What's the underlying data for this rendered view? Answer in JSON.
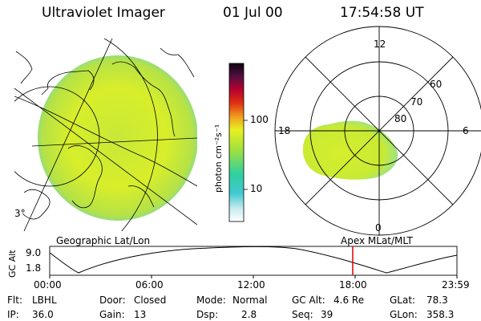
{
  "header": {
    "instrument": "Ultraviolet Imager",
    "date": "01 Jul 00",
    "time": "17:54:58 UT"
  },
  "colorbar": {
    "unit_label": "photon cm⁻²s⁻¹",
    "ticks": [
      "100",
      "10"
    ]
  },
  "geo_panel": {
    "label": "Geographic Lat/Lon",
    "corner_label": "3°"
  },
  "polar_panel": {
    "label": "Apex MLat/MLT",
    "hour_labels": [
      "12",
      "18",
      "6",
      "0"
    ],
    "lat_labels": [
      "60",
      "70",
      "80"
    ]
  },
  "altitude_plot": {
    "ylabel": "GC Alt",
    "y_ticks": [
      "9.0",
      "1.8"
    ],
    "x_ticks": [
      "00:00",
      "06:00",
      "12:00",
      "18:00",
      "23:59"
    ],
    "current_time_marker": "17:54:58"
  },
  "info": {
    "filter_label": "Flt:",
    "filter_value": "LBHL",
    "ip_label": "IP:",
    "ip_value": "36.0",
    "door_label": "Door:",
    "door_value": "Closed",
    "gain_label": "Gain:",
    "gain_value": "13",
    "mode_label": "Mode:",
    "mode_value": "Normal",
    "dsp_label": "Dsp:",
    "dsp_value": "2.8",
    "gcalt_label": "GC Alt:",
    "gcalt_value": "4.6 Re",
    "seq_label": "Seq:",
    "seq_value": "39",
    "glat_label": "GLat:",
    "glat_value": "78.3",
    "glon_label": "GLon:",
    "glon_value": "358.3"
  },
  "colors": {
    "image_primary": "#d4ec2c",
    "image_edge": "#5fd6c8",
    "marker": "#e00000"
  }
}
